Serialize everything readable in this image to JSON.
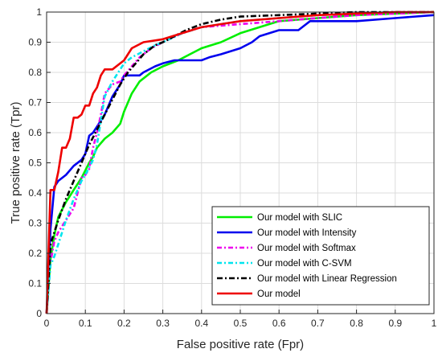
{
  "chart_data": {
    "type": "line",
    "title": "",
    "xlabel": "False positive rate (Fpr)",
    "ylabel": "True positive rate (Tpr)",
    "xlim": [
      0,
      1
    ],
    "ylim": [
      0,
      1
    ],
    "xticks": [
      "0",
      "0.1",
      "0.2",
      "0.3",
      "0.4",
      "0.5",
      "0.6",
      "0.7",
      "0.8",
      "0.9",
      "1"
    ],
    "yticks": [
      "0",
      "0.1",
      "0.2",
      "0.3",
      "0.4",
      "0.5",
      "0.6",
      "0.7",
      "0.8",
      "0.9",
      "1"
    ],
    "grid": true,
    "legend_position": "bottom-right",
    "series": [
      {
        "name": "Our model with SLIC",
        "color": "#00ee00",
        "dash": "solid",
        "x": [
          0,
          0.01,
          0.02,
          0.03,
          0.05,
          0.07,
          0.09,
          0.11,
          0.12,
          0.13,
          0.15,
          0.17,
          0.19,
          0.2,
          0.22,
          0.24,
          0.27,
          0.3,
          0.34,
          0.37,
          0.4,
          0.45,
          0.5,
          0.55,
          0.6,
          0.7,
          0.8,
          0.9,
          1.0
        ],
        "y": [
          0,
          0.18,
          0.26,
          0.32,
          0.37,
          0.41,
          0.45,
          0.5,
          0.52,
          0.55,
          0.58,
          0.6,
          0.63,
          0.67,
          0.73,
          0.77,
          0.8,
          0.82,
          0.84,
          0.86,
          0.88,
          0.9,
          0.93,
          0.95,
          0.97,
          0.98,
          0.99,
          0.995,
          1.0
        ]
      },
      {
        "name": "Our model with Intensity",
        "color": "#0000ee",
        "dash": "solid",
        "x": [
          0,
          0.01,
          0.02,
          0.03,
          0.05,
          0.07,
          0.09,
          0.1,
          0.11,
          0.12,
          0.13,
          0.15,
          0.17,
          0.19,
          0.2,
          0.22,
          0.24,
          0.25,
          0.28,
          0.3,
          0.33,
          0.35,
          0.4,
          0.42,
          0.45,
          0.5,
          0.53,
          0.55,
          0.6,
          0.65,
          0.68,
          0.8,
          0.9,
          1.0
        ],
        "y": [
          0,
          0.28,
          0.42,
          0.44,
          0.46,
          0.49,
          0.51,
          0.53,
          0.59,
          0.6,
          0.62,
          0.66,
          0.72,
          0.76,
          0.79,
          0.79,
          0.79,
          0.8,
          0.82,
          0.83,
          0.84,
          0.84,
          0.84,
          0.85,
          0.86,
          0.88,
          0.9,
          0.92,
          0.94,
          0.94,
          0.97,
          0.97,
          0.98,
          0.99
        ]
      },
      {
        "name": "Our model with Softmax",
        "color": "#ee00ee",
        "dash": "6,3,2,3",
        "x": [
          0,
          0.01,
          0.02,
          0.03,
          0.05,
          0.07,
          0.09,
          0.1,
          0.11,
          0.12,
          0.13,
          0.14,
          0.15,
          0.17,
          0.19,
          0.2,
          0.22,
          0.24,
          0.27,
          0.3,
          0.35,
          0.4,
          0.5,
          0.6,
          0.7,
          0.8,
          0.9,
          1.0
        ],
        "y": [
          0,
          0.17,
          0.24,
          0.27,
          0.31,
          0.35,
          0.45,
          0.46,
          0.48,
          0.55,
          0.6,
          0.66,
          0.73,
          0.76,
          0.77,
          0.79,
          0.82,
          0.85,
          0.88,
          0.9,
          0.93,
          0.95,
          0.96,
          0.97,
          0.98,
          0.99,
          0.995,
          1.0
        ]
      },
      {
        "name": "Our model with C-SVM",
        "color": "#00e5ee",
        "dash": "6,3,2,3",
        "x": [
          0,
          0.01,
          0.02,
          0.03,
          0.05,
          0.07,
          0.09,
          0.1,
          0.12,
          0.13,
          0.14,
          0.15,
          0.17,
          0.19,
          0.2,
          0.22,
          0.25,
          0.28,
          0.3,
          0.35,
          0.4,
          0.5,
          0.6,
          0.7,
          0.8,
          0.9,
          1.0
        ],
        "y": [
          0,
          0.16,
          0.19,
          0.23,
          0.31,
          0.38,
          0.44,
          0.46,
          0.51,
          0.56,
          0.64,
          0.72,
          0.77,
          0.81,
          0.83,
          0.85,
          0.87,
          0.89,
          0.9,
          0.93,
          0.95,
          0.97,
          0.98,
          0.99,
          0.995,
          1.0,
          1.0
        ]
      },
      {
        "name": "Our model with Linear Regression",
        "color": "#000000",
        "dash": "7,3,2,3",
        "x": [
          0,
          0.01,
          0.02,
          0.03,
          0.05,
          0.07,
          0.09,
          0.11,
          0.13,
          0.15,
          0.17,
          0.19,
          0.21,
          0.23,
          0.25,
          0.28,
          0.3,
          0.33,
          0.36,
          0.4,
          0.45,
          0.5,
          0.6,
          0.7,
          0.8,
          0.9,
          1.0
        ],
        "y": [
          0,
          0.23,
          0.27,
          0.31,
          0.38,
          0.44,
          0.5,
          0.56,
          0.61,
          0.66,
          0.71,
          0.76,
          0.8,
          0.83,
          0.86,
          0.89,
          0.9,
          0.92,
          0.94,
          0.96,
          0.975,
          0.985,
          0.99,
          0.995,
          1.0,
          1.0,
          1.0
        ]
      },
      {
        "name": "Our model",
        "color": "#ee0000",
        "dash": "solid",
        "x": [
          0,
          0.01,
          0.02,
          0.03,
          0.04,
          0.05,
          0.06,
          0.07,
          0.08,
          0.09,
          0.1,
          0.11,
          0.12,
          0.13,
          0.14,
          0.15,
          0.17,
          0.2,
          0.22,
          0.25,
          0.3,
          0.35,
          0.4,
          0.45,
          0.5,
          0.6,
          0.7,
          0.8,
          0.9,
          1.0
        ],
        "y": [
          0,
          0.41,
          0.41,
          0.47,
          0.55,
          0.55,
          0.58,
          0.65,
          0.65,
          0.66,
          0.69,
          0.69,
          0.73,
          0.75,
          0.79,
          0.81,
          0.81,
          0.84,
          0.88,
          0.9,
          0.91,
          0.93,
          0.95,
          0.96,
          0.97,
          0.98,
          0.99,
          0.995,
          1.0,
          1.0
        ]
      }
    ]
  }
}
